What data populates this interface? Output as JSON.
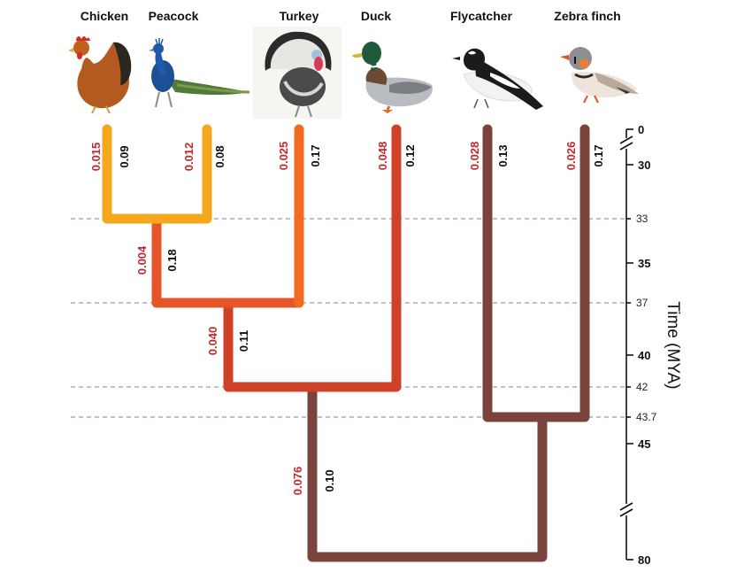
{
  "species": [
    {
      "name": "Chicken",
      "rate": "0.015",
      "divergence": "0.09"
    },
    {
      "name": "Peacock",
      "rate": "0.012",
      "divergence": "0.08"
    },
    {
      "name": "Turkey",
      "rate": "0.025",
      "divergence": "0.17"
    },
    {
      "name": "Duck",
      "rate": "0.048",
      "divergence": "0.12"
    },
    {
      "name": "Flycatcher",
      "rate": "0.028",
      "divergence": "0.13"
    },
    {
      "name": "Zebra finch",
      "rate": "0.026",
      "divergence": "0.17"
    }
  ],
  "internal_branches": [
    {
      "id": "chicken-peacock-stem",
      "rate": "0.004",
      "divergence": "0.18"
    },
    {
      "id": "phasianid-stem",
      "rate": "0.040",
      "divergence": "0.11"
    },
    {
      "id": "galloanserae-stem",
      "rate": "0.076",
      "divergence": "0.10"
    }
  ],
  "axis": {
    "title": "Time (MYA)",
    "ticks": [
      "0",
      "30",
      "33",
      "35",
      "37",
      "40",
      "42",
      "43.7",
      "45",
      "80"
    ]
  },
  "colors": {
    "chicken_peacock": "#f5a81c",
    "turkey": "#f26b21",
    "phasianid": "#e4562a",
    "galloanserae": "#cf4129",
    "root": "#7a433c",
    "grid": "#8fa5a5"
  }
}
